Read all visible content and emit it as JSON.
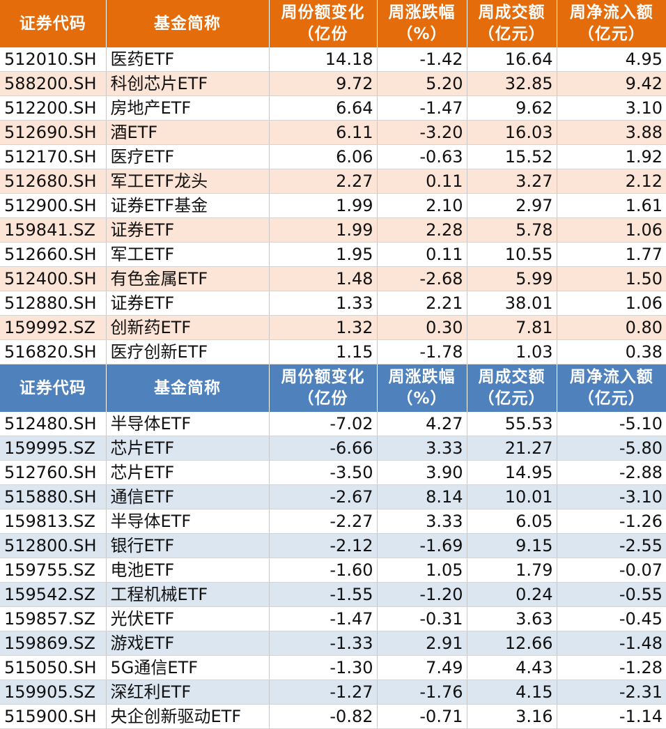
{
  "inflow_table": {
    "header": {
      "code": "证券代码",
      "name": "基金简称",
      "share_change": [
        "周份额变化",
        "（亿份"
      ],
      "change_pct": [
        "周涨跌幅",
        "（%）"
      ],
      "turnover": [
        "周成交额",
        "（亿元）"
      ],
      "net_flow": [
        "周净流入额",
        "（亿元）"
      ]
    },
    "header_color": "#e46c0a",
    "alt_row_color": "#fce4d6",
    "rows": [
      {
        "code": "512010.SH",
        "name": "医药ETF",
        "share_change": "14.18",
        "change_pct": "-1.42",
        "turnover": "16.64",
        "net_flow": "4.95"
      },
      {
        "code": "588200.SH",
        "name": "科创芯片ETF",
        "share_change": "9.72",
        "change_pct": "5.20",
        "turnover": "32.85",
        "net_flow": "9.42"
      },
      {
        "code": "512200.SH",
        "name": "房地产ETF",
        "share_change": "6.64",
        "change_pct": "-1.47",
        "turnover": "9.62",
        "net_flow": "3.10"
      },
      {
        "code": "512690.SH",
        "name": "酒ETF",
        "share_change": "6.11",
        "change_pct": "-3.20",
        "turnover": "16.03",
        "net_flow": "3.88"
      },
      {
        "code": "512170.SH",
        "name": "医疗ETF",
        "share_change": "6.06",
        "change_pct": "-0.63",
        "turnover": "15.52",
        "net_flow": "1.92"
      },
      {
        "code": "512680.SH",
        "name": "军工ETF龙头",
        "share_change": "2.27",
        "change_pct": "0.11",
        "turnover": "3.27",
        "net_flow": "2.12"
      },
      {
        "code": "512900.SH",
        "name": "证券ETF基金",
        "share_change": "1.99",
        "change_pct": "2.10",
        "turnover": "2.97",
        "net_flow": "1.61"
      },
      {
        "code": "159841.SZ",
        "name": "证券ETF",
        "share_change": "1.99",
        "change_pct": "2.28",
        "turnover": "5.78",
        "net_flow": "1.06"
      },
      {
        "code": "512660.SH",
        "name": "军工ETF",
        "share_change": "1.95",
        "change_pct": "0.11",
        "turnover": "10.55",
        "net_flow": "1.77"
      },
      {
        "code": "512400.SH",
        "name": "有色金属ETF",
        "share_change": "1.48",
        "change_pct": "-2.68",
        "turnover": "5.99",
        "net_flow": "1.50"
      },
      {
        "code": "512880.SH",
        "name": "证券ETF",
        "share_change": "1.33",
        "change_pct": "2.21",
        "turnover": "38.01",
        "net_flow": "1.06"
      },
      {
        "code": "159992.SZ",
        "name": "创新药ETF",
        "share_change": "1.32",
        "change_pct": "0.30",
        "turnover": "7.81",
        "net_flow": "0.80"
      },
      {
        "code": "516820.SH",
        "name": "医疗创新ETF",
        "share_change": "1.15",
        "change_pct": "-1.78",
        "turnover": "1.03",
        "net_flow": "0.38"
      }
    ]
  },
  "outflow_table": {
    "header": {
      "code": "证券代码",
      "name": "基金简称",
      "share_change": [
        "周份额变化",
        "（亿份"
      ],
      "change_pct": [
        "周涨跌幅",
        "（%）"
      ],
      "turnover": [
        "周成交额",
        "（亿元）"
      ],
      "net_flow": [
        "周净流入额",
        "（亿元）"
      ]
    },
    "header_color": "#4f81bd",
    "alt_row_color": "#dce6f1",
    "rows": [
      {
        "code": "512480.SH",
        "name": "半导体ETF",
        "share_change": "-7.02",
        "change_pct": "4.27",
        "turnover": "55.53",
        "net_flow": "-5.10"
      },
      {
        "code": "159995.SZ",
        "name": "芯片ETF",
        "share_change": "-6.66",
        "change_pct": "3.33",
        "turnover": "21.27",
        "net_flow": "-5.80"
      },
      {
        "code": "512760.SH",
        "name": "芯片ETF",
        "share_change": "-3.50",
        "change_pct": "3.90",
        "turnover": "14.95",
        "net_flow": "-2.88"
      },
      {
        "code": "515880.SH",
        "name": "通信ETF",
        "share_change": "-2.67",
        "change_pct": "8.14",
        "turnover": "10.01",
        "net_flow": "-3.10"
      },
      {
        "code": "159813.SZ",
        "name": "半导体ETF",
        "share_change": "-2.27",
        "change_pct": "3.33",
        "turnover": "6.05",
        "net_flow": "-1.26"
      },
      {
        "code": "512800.SH",
        "name": "银行ETF",
        "share_change": "-2.12",
        "change_pct": "-1.69",
        "turnover": "9.15",
        "net_flow": "-2.55"
      },
      {
        "code": "159755.SZ",
        "name": "电池ETF",
        "share_change": "-1.60",
        "change_pct": "1.05",
        "turnover": "1.79",
        "net_flow": "-0.07"
      },
      {
        "code": "159542.SZ",
        "name": "工程机械ETF",
        "share_change": "-1.55",
        "change_pct": "-1.20",
        "turnover": "0.24",
        "net_flow": "-0.55"
      },
      {
        "code": "159857.SZ",
        "name": "光伏ETF",
        "share_change": "-1.47",
        "change_pct": "-0.31",
        "turnover": "3.63",
        "net_flow": "-0.45"
      },
      {
        "code": "159869.SZ",
        "name": "游戏ETF",
        "share_change": "-1.33",
        "change_pct": "2.91",
        "turnover": "12.66",
        "net_flow": "-1.48"
      },
      {
        "code": "515050.SH",
        "name": "5G通信ETF",
        "share_change": "-1.30",
        "change_pct": "7.49",
        "turnover": "4.43",
        "net_flow": "-1.28"
      },
      {
        "code": "159905.SZ",
        "name": "深红利ETF",
        "share_change": "-1.27",
        "change_pct": "-1.76",
        "turnover": "4.15",
        "net_flow": "-2.31"
      },
      {
        "code": "515900.SH",
        "name": "央企创新驱动ETF",
        "share_change": "-0.82",
        "change_pct": "-0.71",
        "turnover": "3.16",
        "net_flow": "-1.14"
      }
    ]
  }
}
